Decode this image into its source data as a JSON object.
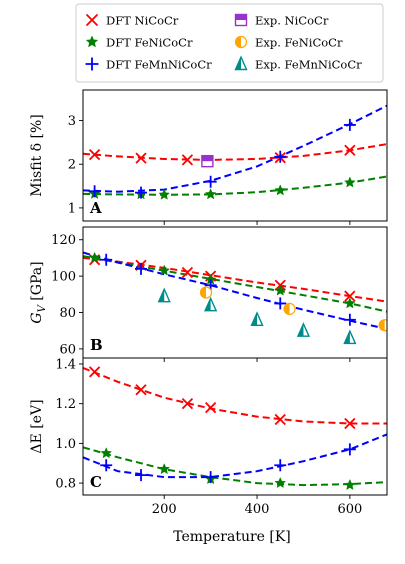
{
  "legend": [
    {
      "label": "DFT NiCoCr",
      "marker": "x",
      "color": "#ff0000"
    },
    {
      "label": "DFT FeNiCoCr",
      "marker": "star",
      "color": "#008000"
    },
    {
      "label": "DFT FeMnNiCoCr",
      "marker": "plus",
      "color": "#0000ff"
    },
    {
      "label": "Exp. NiCoCr",
      "marker": "half-square",
      "color": "#9932cc"
    },
    {
      "label": "Exp. FeNiCoCr",
      "marker": "half-circle",
      "color": "#ffa500"
    },
    {
      "label": "Exp. FeMnNiCoCr",
      "marker": "half-triangle",
      "color": "#008b8b"
    }
  ],
  "chart_data": {
    "type": "line",
    "xlabel": "Temperature [K]",
    "xlim": [
      25,
      680
    ],
    "xticks": [
      200,
      400,
      600
    ],
    "panels": [
      {
        "letter": "A",
        "ylabel": "Misfit δ [%]",
        "ylim": [
          0.7,
          3.7
        ],
        "yticks": [
          1,
          2,
          3
        ],
        "series": [
          {
            "name": "DFT NiCoCr",
            "marker": "x",
            "color": "#ff0000",
            "x": [
              50,
              150,
              250,
              450,
              600
            ],
            "y": [
              2.22,
              2.14,
              2.1,
              2.15,
              2.32
            ],
            "fit": {
              "x": [
                25,
                100,
                200,
                300,
                400,
                500,
                600,
                680
              ],
              "y": [
                2.24,
                2.18,
                2.12,
                2.1,
                2.12,
                2.19,
                2.32,
                2.46
              ]
            }
          },
          {
            "name": "DFT FeNiCoCr",
            "marker": "star",
            "color": "#008000",
            "x": [
              50,
              150,
              200,
              300,
              450,
              600
            ],
            "y": [
              1.32,
              1.31,
              1.3,
              1.31,
              1.4,
              1.58
            ],
            "fit": {
              "x": [
                25,
                100,
                200,
                300,
                400,
                500,
                600,
                680
              ],
              "y": [
                1.32,
                1.31,
                1.3,
                1.31,
                1.36,
                1.46,
                1.58,
                1.72
              ]
            }
          },
          {
            "name": "DFT FeMnNiCoCr",
            "marker": "plus",
            "color": "#0000ff",
            "x": [
              50,
              150,
              300,
              450,
              600
            ],
            "y": [
              1.38,
              1.35,
              1.6,
              2.17,
              2.9
            ],
            "fit": {
              "x": [
                25,
                100,
                200,
                300,
                400,
                500,
                600,
                680
              ],
              "y": [
                1.4,
                1.37,
                1.42,
                1.62,
                1.95,
                2.42,
                2.92,
                3.34
              ]
            }
          },
          {
            "name": "Exp. NiCoCr",
            "marker": "half-square",
            "color": "#9932cc",
            "x": [
              293
            ],
            "y": [
              2.07
            ]
          }
        ]
      },
      {
        "letter": "B",
        "ylabel": "G_V [GPa]",
        "ylim": [
          55,
          127
        ],
        "yticks": [
          60,
          80,
          100,
          120
        ],
        "series": [
          {
            "name": "DFT NiCoCr",
            "marker": "x",
            "color": "#ff0000",
            "x": [
              50,
              150,
              250,
              300,
              450,
              600
            ],
            "y": [
              109,
              106,
              102,
              100,
              95,
              89
            ],
            "fit": {
              "x": [
                25,
                100,
                200,
                300,
                400,
                500,
                600,
                680
              ],
              "y": [
                110,
                108,
                104.5,
                100.5,
                96.5,
                93,
                89,
                86
              ]
            }
          },
          {
            "name": "DFT FeNiCoCr",
            "marker": "star",
            "color": "#008000",
            "x": [
              50,
              200,
              300,
              450,
              600
            ],
            "y": [
              110,
              103,
              98,
              92,
              85
            ],
            "fit": {
              "x": [
                25,
                100,
                200,
                300,
                400,
                500,
                600,
                680
              ],
              "y": [
                111,
                107.5,
                103,
                98.5,
                94,
                89.5,
                85,
                80.5
              ]
            }
          },
          {
            "name": "DFT FeMnNiCoCr",
            "marker": "plus",
            "color": "#0000ff",
            "x": [
              75,
              150,
              300,
              450,
              600
            ],
            "y": [
              109,
              104,
              95,
              85,
              76
            ],
            "fit": {
              "x": [
                25,
                100,
                200,
                300,
                400,
                500,
                600,
                680
              ],
              "y": [
                113,
                107.5,
                101,
                95,
                88,
                81.5,
                75.5,
                71
              ]
            }
          },
          {
            "name": "Exp. FeNiCoCr",
            "marker": "half-circle",
            "color": "#ffa500",
            "x": [
              290,
              470,
              675
            ],
            "y": [
              91,
              82,
              73
            ]
          },
          {
            "name": "Exp. FeMnNiCoCr",
            "marker": "half-triangle",
            "color": "#008b8b",
            "x": [
              200,
              300,
              400,
              500,
              600
            ],
            "y": [
              89,
              84,
              76,
              70,
              66
            ]
          }
        ]
      },
      {
        "letter": "C",
        "ylabel": "ΔE [eV]",
        "ylim": [
          0.74,
          1.43
        ],
        "yticks": [
          0.8,
          1.0,
          1.2,
          1.4
        ],
        "series": [
          {
            "name": "DFT NiCoCr",
            "marker": "x",
            "color": "#ff0000",
            "x": [
              50,
              150,
              250,
              300,
              450,
              600
            ],
            "y": [
              1.36,
              1.27,
              1.2,
              1.18,
              1.12,
              1.1
            ],
            "fit": {
              "x": [
                25,
                100,
                200,
                300,
                400,
                500,
                600,
                680
              ],
              "y": [
                1.38,
                1.31,
                1.23,
                1.175,
                1.135,
                1.11,
                1.1,
                1.1
              ]
            }
          },
          {
            "name": "DFT FeNiCoCr",
            "marker": "star",
            "color": "#008000",
            "x": [
              75,
              200,
              300,
              450,
              600
            ],
            "y": [
              0.95,
              0.87,
              0.82,
              0.8,
              0.79
            ],
            "fit": {
              "x": [
                25,
                100,
                200,
                300,
                400,
                500,
                600,
                680
              ],
              "y": [
                0.98,
                0.93,
                0.87,
                0.83,
                0.8,
                0.79,
                0.795,
                0.805
              ]
            }
          },
          {
            "name": "DFT FeMnNiCoCr",
            "marker": "plus",
            "color": "#0000ff",
            "x": [
              75,
              150,
              300,
              450,
              600
            ],
            "y": [
              0.89,
              0.84,
              0.83,
              0.89,
              0.97
            ],
            "fit": {
              "x": [
                25,
                100,
                200,
                300,
                400,
                500,
                600,
                680
              ],
              "y": [
                0.93,
                0.86,
                0.83,
                0.83,
                0.86,
                0.91,
                0.97,
                1.045
              ]
            }
          }
        ]
      }
    ]
  }
}
